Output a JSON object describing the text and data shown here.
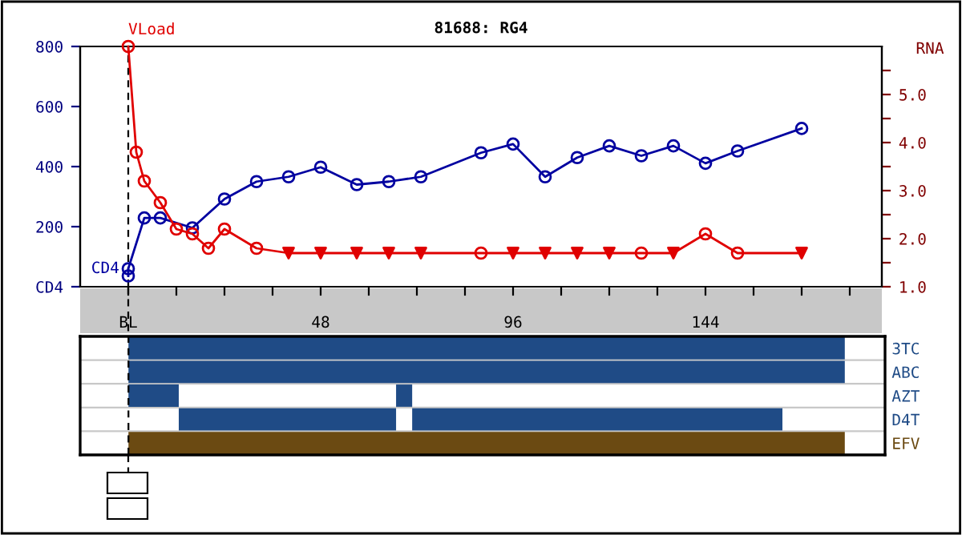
{
  "chart_data": [
    {
      "type": "line",
      "title": "81688: RG4",
      "y2label": "RNA",
      "grid": false,
      "legend": false,
      "xlim": [
        -12,
        188
      ],
      "xticks": [
        {
          "value": 0,
          "label": "BL"
        },
        {
          "value": 12,
          "label": null
        },
        {
          "value": 24,
          "label": null
        },
        {
          "value": 36,
          "label": null
        },
        48,
        {
          "value": 60,
          "label": null
        },
        {
          "value": 72,
          "label": null
        },
        {
          "value": 84,
          "label": null
        },
        96,
        {
          "value": 108,
          "label": null
        },
        {
          "value": 120,
          "label": null
        },
        {
          "value": 132,
          "label": null
        },
        144,
        {
          "value": 156,
          "label": null
        },
        {
          "value": 168,
          "label": null
        },
        {
          "value": 180,
          "label": null
        }
      ],
      "ylim": [
        0,
        800
      ],
      "yticks": [
        {
          "value": 0,
          "label": "CD4"
        },
        {
          "value": 200,
          "label": "200"
        },
        {
          "value": 400,
          "label": "400"
        },
        {
          "value": 600,
          "label": "600"
        },
        {
          "value": 800,
          "label": "800"
        }
      ],
      "y2lim": [
        1.0,
        6.0
      ],
      "y2ticks": [
        {
          "value": 1.0,
          "label": "1.0"
        },
        {
          "value": 1.5,
          "label": null
        },
        {
          "value": 2.0,
          "label": "2.0"
        },
        {
          "value": 2.5,
          "label": null
        },
        {
          "value": 3.0,
          "label": "3.0"
        },
        {
          "value": 3.5,
          "label": null
        },
        {
          "value": 4.0,
          "label": "4.0"
        },
        {
          "value": 4.5,
          "label": null
        },
        {
          "value": 5.0,
          "label": "5.0"
        },
        {
          "value": 5.5,
          "label": null
        }
      ],
      "ref_lines": [
        {
          "axis": "x",
          "value": 0,
          "color": "#000000",
          "line_style": "dashed"
        }
      ],
      "series": [
        {
          "name": "CD4",
          "color": "#0000a0",
          "marker": "circle",
          "x": [
            0,
            0,
            4,
            8,
            16,
            24,
            32,
            40,
            48,
            57,
            65,
            73,
            88,
            96,
            104,
            112,
            120,
            128,
            136,
            144,
            152,
            168
          ],
          "values": [
            36,
            60,
            229,
            229,
            196,
            292,
            350,
            366,
            398,
            340,
            350,
            366,
            446,
            475,
            366,
            430,
            469,
            436,
            469,
            411,
            452,
            527
          ]
        },
        {
          "name": "VLoad",
          "axis": "y2",
          "color": "#e00000",
          "marker": "none",
          "x": [
            0,
            2,
            4,
            8,
            12,
            16,
            20,
            24,
            32,
            40,
            48,
            57,
            65,
            73,
            88,
            96,
            104,
            112,
            120,
            128,
            136,
            144,
            152,
            168
          ],
          "values": [
            6.0,
            3.8,
            3.2,
            2.75,
            2.2,
            2.1,
            1.8,
            2.2,
            1.8,
            1.7,
            1.7,
            1.7,
            1.7,
            1.7,
            1.7,
            1.7,
            1.7,
            1.7,
            1.7,
            1.7,
            1.7,
            2.1,
            1.7,
            1.7
          ]
        },
        {
          "type": "scatter",
          "axis": "y2",
          "color": "#e00000",
          "marker": "circle",
          "x": [
            0,
            2,
            4,
            8,
            12,
            16,
            20,
            24,
            32,
            88,
            128,
            144,
            152
          ],
          "values": [
            6.0,
            3.8,
            3.2,
            2.75,
            2.2,
            2.1,
            1.8,
            2.2,
            1.8,
            1.7,
            1.7,
            2.1,
            1.7
          ]
        },
        {
          "type": "scatter",
          "axis": "y2",
          "color": "#e00000",
          "marker": "triangle",
          "x": [
            40,
            48,
            57,
            65,
            73,
            96,
            104,
            112,
            120,
            136,
            168
          ],
          "values": [
            1.7,
            1.7,
            1.7,
            1.7,
            1.7,
            1.7,
            1.7,
            1.7,
            1.7,
            1.7,
            1.7
          ]
        }
      ]
    },
    {
      "type": "bar",
      "orientation": "horizontal",
      "tick_labels": "y",
      "xlim": [
        -12,
        188
      ],
      "ref_lines": [
        {
          "axis": "x",
          "value": 0,
          "color": "#000000",
          "line_style": "dashed"
        }
      ],
      "categories": [
        "3TC",
        "ABC",
        "AZT",
        "D4T",
        "EFV"
      ],
      "series": [
        {
          "base": [
            0,
            0,
            0,
            12.5,
            0
          ],
          "values": [
            178,
            178,
            12.5,
            54,
            178
          ],
          "colors": [
            "#1f4b86",
            "#1f4b86",
            "#1f4b86",
            "#1f4b86",
            "#6b4a12"
          ]
        },
        {
          "base": [
            null,
            null,
            66.5,
            70.5,
            null
          ],
          "values": [
            null,
            null,
            4,
            92,
            null
          ],
          "colors": [
            "#1f4b86",
            "#1f4b86",
            "#1f4b86",
            "#1f4b86",
            "#6b4a12"
          ]
        }
      ]
    }
  ]
}
